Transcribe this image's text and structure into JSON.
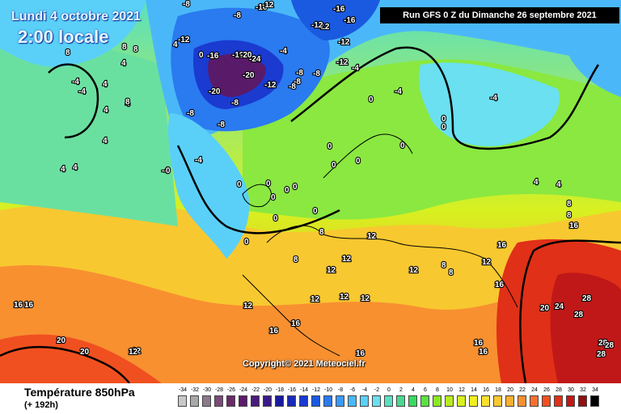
{
  "header": {
    "date": "Lundi 4 octobre 2021",
    "local_time": "2:00 locale",
    "run_info": "Run GFS 0 Z du Dimanche 26 septembre 2021",
    "copyright": "Copyright© 2021 Meteociel.fr"
  },
  "footer": {
    "variable": "Température 850hPa",
    "forecast_range": "(+ 192h)"
  },
  "legend": {
    "values": [
      -34,
      -32,
      -30,
      -28,
      -26,
      -24,
      -22,
      -20,
      -18,
      -16,
      -14,
      -12,
      -10,
      -8,
      -6,
      -4,
      -2,
      0,
      2,
      4,
      6,
      8,
      10,
      12,
      14,
      16,
      18,
      20,
      22,
      24,
      26,
      28,
      30,
      32,
      34
    ],
    "colors": [
      "#c8c8c8",
      "#a8a8a8",
      "#8a7a8a",
      "#7a4a7a",
      "#6a2a6a",
      "#5a1a6a",
      "#4a1a7a",
      "#3a1a8a",
      "#1a1aa0",
      "#1a2ab8",
      "#1a3ad0",
      "#1a5ae0",
      "#2a7af0",
      "#3a9af8",
      "#4ab8f8",
      "#5ad0f8",
      "#6ae0f0",
      "#5ae0c0",
      "#4ad890",
      "#3ad860",
      "#5ae040",
      "#8ae820",
      "#b8ec20",
      "#d8f020",
      "#f0f020",
      "#f8e030",
      "#f8c830",
      "#f8b030",
      "#f89030",
      "#f87030",
      "#f05020",
      "#e03018",
      "#c01818",
      "#901010",
      "#000000"
    ]
  },
  "isotherm_labels": [
    {
      "t": "-16"
    },
    {
      "t": "-16"
    },
    {
      "t": "-12"
    },
    {
      "t": "-8"
    },
    {
      "t": "-8"
    },
    {
      "t": "-12"
    },
    {
      "t": "-12"
    },
    {
      "t": "-16"
    },
    {
      "t": "-12"
    },
    {
      "t": "-8"
    },
    {
      "t": "-20"
    },
    {
      "t": "-24"
    },
    {
      "t": "-20"
    },
    {
      "t": "-16"
    },
    {
      "t": "-12"
    },
    {
      "t": "-16"
    },
    {
      "t": "-20"
    },
    {
      "t": "-8"
    },
    {
      "t": "-4"
    },
    {
      "t": "-4"
    },
    {
      "t": "-8"
    },
    {
      "t": "-12"
    },
    {
      "t": "-8"
    },
    {
      "t": "-12"
    },
    {
      "t": "-8"
    },
    {
      "t": "-4"
    },
    {
      "t": "-4"
    },
    {
      "t": "-4"
    },
    {
      "t": "-4"
    },
    {
      "t": "-8"
    },
    {
      "t": "-8"
    },
    {
      "t": "-4"
    },
    {
      "t": "-4"
    },
    {
      "t": "0"
    },
    {
      "t": "0"
    },
    {
      "t": "0"
    },
    {
      "t": "0"
    },
    {
      "t": "0"
    },
    {
      "t": "0"
    },
    {
      "t": "0"
    },
    {
      "t": "0"
    },
    {
      "t": "0"
    },
    {
      "t": "0"
    },
    {
      "t": "0"
    },
    {
      "t": "0"
    },
    {
      "t": "0"
    },
    {
      "t": "0"
    },
    {
      "t": "0"
    },
    {
      "t": "0"
    },
    {
      "t": "0"
    },
    {
      "t": "4"
    },
    {
      "t": "4"
    },
    {
      "t": "4"
    },
    {
      "t": "4"
    },
    {
      "t": "4"
    },
    {
      "t": "4"
    },
    {
      "t": "4"
    },
    {
      "t": "4"
    },
    {
      "t": "4"
    },
    {
      "t": "4"
    },
    {
      "t": "8"
    },
    {
      "t": "8"
    },
    {
      "t": "8"
    },
    {
      "t": "8"
    },
    {
      "t": "8"
    },
    {
      "t": "8"
    },
    {
      "t": "8"
    },
    {
      "t": "8"
    },
    {
      "t": "8"
    },
    {
      "t": "8"
    },
    {
      "t": "12"
    },
    {
      "t": "12"
    },
    {
      "t": "12"
    },
    {
      "t": "12"
    },
    {
      "t": "12"
    },
    {
      "t": "12"
    },
    {
      "t": "12"
    },
    {
      "t": "12"
    },
    {
      "t": "12"
    },
    {
      "t": "12"
    },
    {
      "t": "16"
    },
    {
      "t": "16"
    },
    {
      "t": "16"
    },
    {
      "t": "16"
    },
    {
      "t": "16"
    },
    {
      "t": "16"
    },
    {
      "t": "16"
    },
    {
      "t": "16"
    },
    {
      "t": "16"
    },
    {
      "t": "16"
    },
    {
      "t": "20"
    },
    {
      "t": "20"
    },
    {
      "t": "24"
    },
    {
      "t": "28"
    },
    {
      "t": "28"
    },
    {
      "t": "28"
    },
    {
      "t": "28"
    },
    {
      "t": "28"
    },
    {
      "t": "20"
    },
    {
      "t": "12"
    }
  ]
}
